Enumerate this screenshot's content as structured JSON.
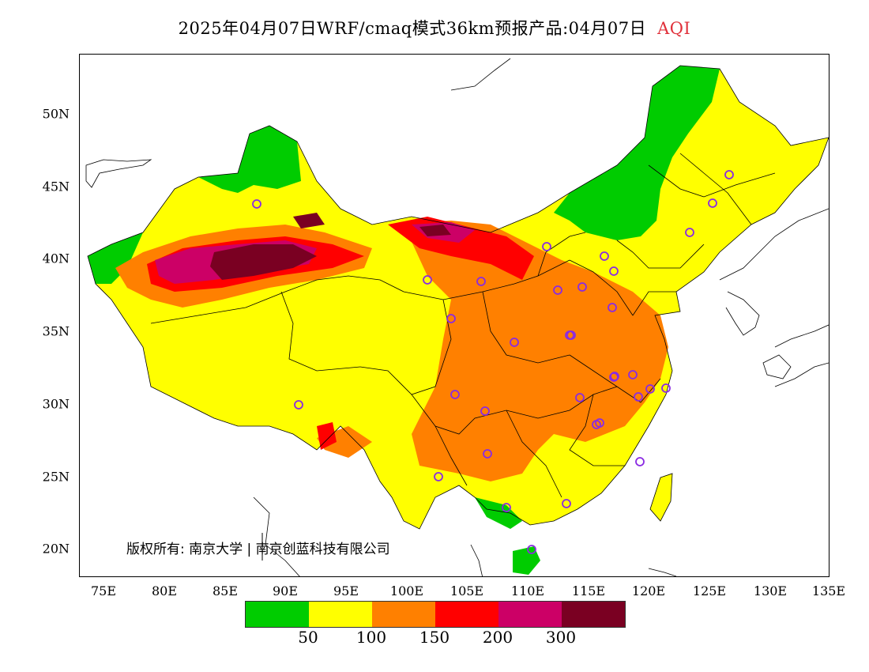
{
  "title": {
    "main": "2025年04月07日WRF/cmaq模式36km预报产品:04月07日",
    "product": "AQI",
    "product_color": "#e0303a"
  },
  "map": {
    "lat_labels": [
      "50N",
      "45N",
      "40N",
      "35N",
      "30N",
      "25N",
      "20N"
    ],
    "lon_labels": [
      "75E",
      "80E",
      "85E",
      "90E",
      "95E",
      "100E",
      "105E",
      "110E",
      "115E",
      "120E",
      "125E",
      "130E",
      "135E"
    ],
    "copyright": "版权所有: 南京大学 | 南京创蓝科技有限公司",
    "station_marker_color": "#8a2be2"
  },
  "legend": {
    "colors": [
      "#00cc00",
      "#ffff00",
      "#ff8000",
      "#ff0000",
      "#cc0066",
      "#7a0022"
    ],
    "breaks": [
      "50",
      "100",
      "150",
      "200",
      "300"
    ]
  }
}
